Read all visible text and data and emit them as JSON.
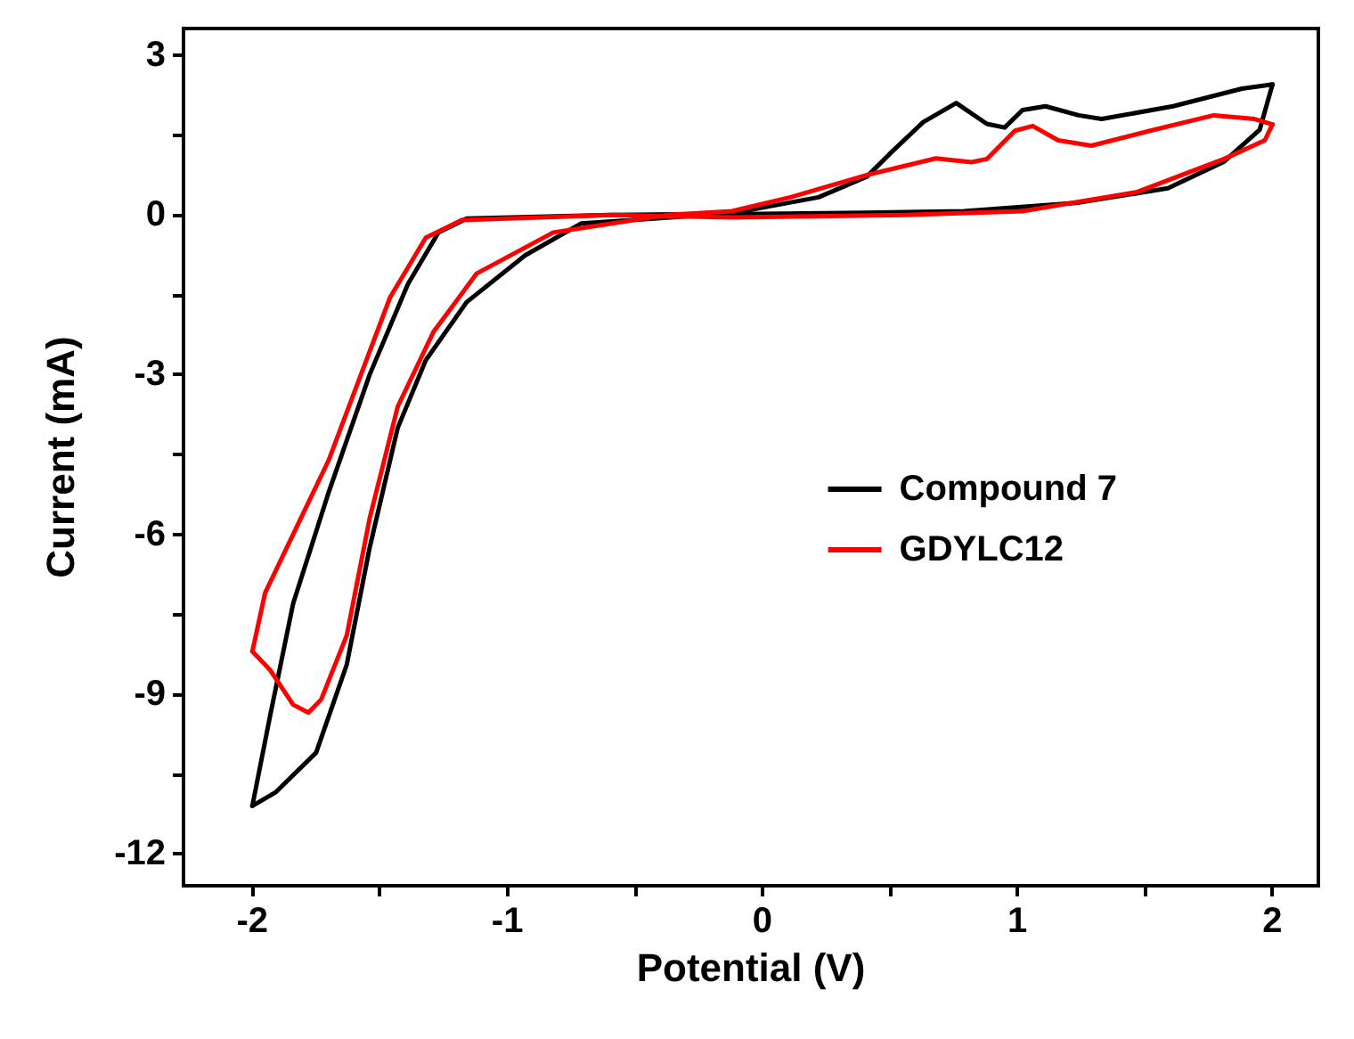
{
  "chart_data": {
    "type": "line",
    "xlabel": "Potential (V)",
    "ylabel": "Current (mA)",
    "xlim": [
      -2.27,
      2.18
    ],
    "ylim": [
      -12.6,
      3.5
    ],
    "xticks": [
      -2,
      {
        "value": -1.5,
        "label": null
      },
      -1,
      {
        "value": -0.5,
        "label": null
      },
      0,
      {
        "value": 0.5,
        "label": null
      },
      1,
      {
        "value": 1.5,
        "label": null
      },
      2
    ],
    "yticks": [
      -12,
      {
        "value": -10.5,
        "label": null
      },
      -9,
      {
        "value": -7.5,
        "label": null
      },
      -6,
      {
        "value": -4.5,
        "label": null
      },
      -3,
      {
        "value": -1.5,
        "label": null
      },
      0,
      {
        "value": 1.5,
        "label": null
      },
      3
    ],
    "grid": false,
    "legend": "right",
    "marker": "none",
    "line_style": "solid",
    "series": [
      {
        "name": "Compound 7",
        "color": "#000000",
        "x": [
          -2,
          -1.93,
          -1.84,
          -1.7,
          -1.54,
          -1.39,
          -1.27,
          -1.16,
          -0.6,
          0,
          0.4,
          0.79,
          1.24,
          1.59,
          1.81,
          1.95,
          2
        ],
        "values": [
          -11.1,
          -9.4,
          -7.3,
          -5.2,
          -3,
          -1.3,
          -0.33,
          -0.07,
          0,
          0.02,
          0.04,
          0.07,
          0.23,
          0.5,
          1,
          1.6,
          2.45
        ]
      },
      {
        "color": "#000000",
        "x": [
          2,
          1.88,
          1.61,
          1.33,
          1.24,
          1.11,
          1.02,
          0.95,
          0.88,
          0.76,
          0.63,
          0.5,
          0.41,
          0.22,
          -0.12,
          -0.71,
          -0.93,
          -1.16,
          -1.32,
          -1.43,
          -1.54,
          -1.63,
          -1.75,
          -1.91,
          -2
        ],
        "values": [
          2.45,
          2.37,
          2.04,
          1.8,
          1.87,
          2.04,
          1.97,
          1.64,
          1.71,
          2.1,
          1.74,
          1.15,
          0.72,
          0.33,
          0.03,
          -0.16,
          -0.76,
          -1.64,
          -2.73,
          -4,
          -6.25,
          -8.45,
          -10.1,
          -10.85,
          -11.1
        ]
      },
      {
        "name": "GDYLC12",
        "color": "#ff0000",
        "x": [
          -2,
          -1.95,
          -1.84,
          -1.7,
          -1.59,
          -1.46,
          -1.32,
          -1.18,
          -0.59,
          -0.12,
          0.56,
          1.02,
          1.47,
          1.81,
          1.97,
          2
        ],
        "values": [
          -8.2,
          -7.1,
          -6,
          -4.6,
          -3.2,
          -1.55,
          -0.43,
          -0.1,
          0,
          -0.05,
          0,
          0.07,
          0.43,
          1.05,
          1.4,
          1.7
        ]
      },
      {
        "color": "#ff0000",
        "x": [
          2,
          1.93,
          1.77,
          1.52,
          1.29,
          1.16,
          1.06,
          0.99,
          0.88,
          0.82,
          0.68,
          0.41,
          0.11,
          -0.12,
          -0.37,
          -0.82,
          -1.12,
          -1.29,
          -1.43,
          -1.54,
          -1.63,
          -1.73,
          -1.78,
          -1.84,
          -1.93,
          -2
        ],
        "values": [
          1.7,
          1.8,
          1.87,
          1.58,
          1.3,
          1.4,
          1.67,
          1.58,
          1.05,
          0.99,
          1.06,
          0.75,
          0.33,
          0.07,
          0,
          -0.33,
          -1.1,
          -2.2,
          -3.6,
          -5.7,
          -7.9,
          -9.1,
          -9.35,
          -9.2,
          -8.55,
          -8.2
        ]
      }
    ]
  }
}
